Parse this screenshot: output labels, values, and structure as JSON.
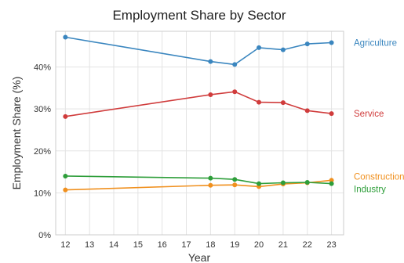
{
  "chart_data": {
    "type": "line",
    "title": "Employment Share by Sector",
    "xlabel": "Year",
    "ylabel": "Employment Share (%)",
    "x": [
      12,
      13,
      14,
      15,
      16,
      17,
      18,
      19,
      20,
      21,
      22,
      23
    ],
    "xlim": [
      11.6,
      23.5
    ],
    "ylim": [
      0,
      0.485
    ],
    "yticks": [
      0,
      0.1,
      0.2,
      0.3,
      0.4
    ],
    "ytick_labels": [
      "0%",
      "10%",
      "20%",
      "30%",
      "40%"
    ],
    "grid": true,
    "legend": "inline-right",
    "series": [
      {
        "name": "Agriculture",
        "color": "#3a86bf",
        "points": [
          [
            12,
            0.471
          ],
          [
            18,
            0.413
          ],
          [
            19,
            0.406
          ],
          [
            20,
            0.446
          ],
          [
            21,
            0.441
          ],
          [
            22,
            0.455
          ],
          [
            23,
            0.458
          ]
        ]
      },
      {
        "name": "Service",
        "color": "#d03c3c",
        "points": [
          [
            12,
            0.282
          ],
          [
            18,
            0.334
          ],
          [
            19,
            0.341
          ],
          [
            20,
            0.316
          ],
          [
            21,
            0.315
          ],
          [
            22,
            0.296
          ],
          [
            23,
            0.289
          ]
        ]
      },
      {
        "name": "Construction",
        "color": "#f0901e",
        "points": [
          [
            12,
            0.107
          ],
          [
            18,
            0.118
          ],
          [
            19,
            0.119
          ],
          [
            20,
            0.115
          ],
          [
            21,
            0.121
          ],
          [
            22,
            0.124
          ],
          [
            23,
            0.13
          ]
        ]
      },
      {
        "name": "Industry",
        "color": "#2e9e3a",
        "points": [
          [
            12,
            0.14
          ],
          [
            18,
            0.135
          ],
          [
            19,
            0.132
          ],
          [
            20,
            0.122
          ],
          [
            21,
            0.124
          ],
          [
            22,
            0.125
          ],
          [
            23,
            0.122
          ]
        ]
      }
    ]
  }
}
